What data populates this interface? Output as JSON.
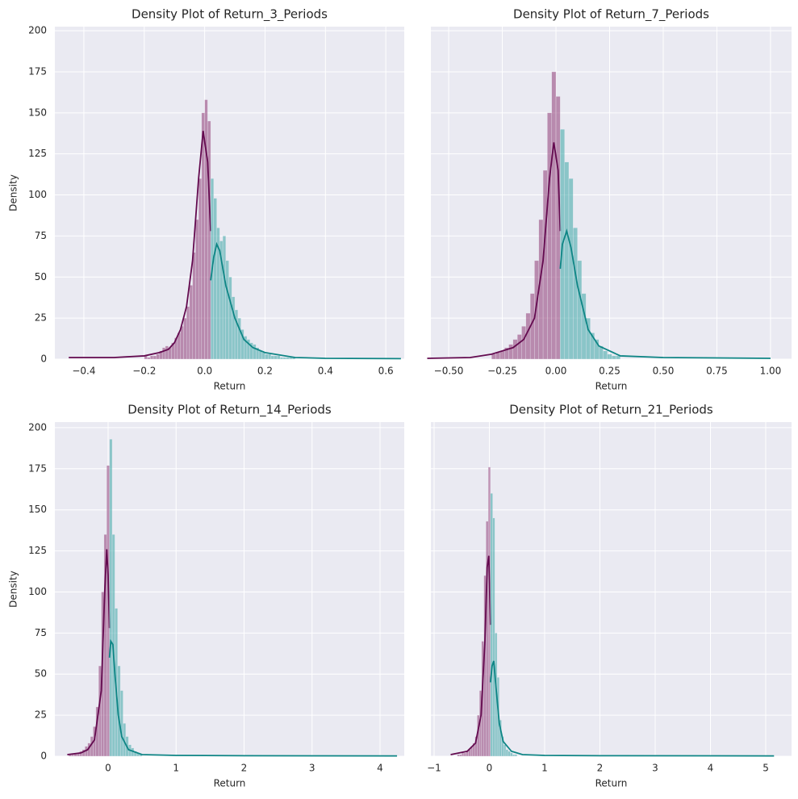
{
  "chart_data": [
    {
      "type": "histogram",
      "title": "Density Plot of Return_3_Periods",
      "x_label": "Return",
      "y_label": "Density",
      "xlim": [
        -0.496,
        0.661
      ],
      "ylim": [
        0,
        202.5
      ],
      "xticks": [
        {
          "value": -0.4,
          "label": "−0.4"
        },
        {
          "value": -0.2,
          "label": "−0.2"
        },
        {
          "value": 0,
          "label": "0.0"
        },
        0.2,
        0.4,
        0.6
      ],
      "yticks": [
        0,
        25,
        50,
        75,
        100,
        125,
        150,
        175,
        200
      ],
      "show_ytick_labels": true,
      "grid": true,
      "series": [
        {
          "color": "#8e3a76",
          "line_color": "#630a4f",
          "bins": [
            -0.2,
            -0.19,
            -0.18,
            -0.17,
            -0.16,
            -0.15,
            -0.14,
            -0.13,
            -0.12,
            -0.11,
            -0.1,
            -0.09,
            -0.08,
            -0.07,
            -0.06,
            -0.05,
            -0.04,
            -0.03,
            -0.02,
            -0.01,
            0.0,
            0.01,
            0.02
          ],
          "values": [
            2,
            1,
            2,
            2,
            3,
            5,
            7,
            8,
            7,
            10,
            13,
            16,
            20,
            25,
            32,
            45,
            65,
            85,
            110,
            150,
            158,
            145
          ],
          "kde_x": [
            -0.45,
            -0.3,
            -0.2,
            -0.15,
            -0.12,
            -0.1,
            -0.08,
            -0.06,
            -0.04,
            -0.02,
            -0.005,
            0.01,
            0.02
          ],
          "kde_y": [
            1,
            1,
            2,
            4,
            6,
            10,
            18,
            32,
            60,
            110,
            139,
            120,
            78
          ]
        },
        {
          "color": "#3aa6a6",
          "line_color": "#0e8585",
          "bins": [
            0.02,
            0.03,
            0.04,
            0.05,
            0.06,
            0.07,
            0.08,
            0.09,
            0.1,
            0.11,
            0.12,
            0.13,
            0.14,
            0.15,
            0.16,
            0.17,
            0.18,
            0.19,
            0.2,
            0.21,
            0.22,
            0.23,
            0.24,
            0.25,
            0.26,
            0.27,
            0.28,
            0.29,
            0.3
          ],
          "values": [
            110,
            98,
            80,
            72,
            75,
            60,
            50,
            38,
            30,
            25,
            18,
            14,
            12,
            10,
            9,
            7,
            5,
            4,
            3,
            3,
            2,
            2,
            2,
            1,
            1,
            1,
            1,
            1
          ],
          "kde_x": [
            0.02,
            0.03,
            0.04,
            0.05,
            0.07,
            0.1,
            0.13,
            0.16,
            0.2,
            0.3,
            0.4,
            0.65
          ],
          "kde_y": [
            48,
            62,
            70,
            66,
            45,
            25,
            12,
            7,
            4,
            1,
            0.5,
            0.3
          ]
        }
      ]
    },
    {
      "type": "histogram",
      "title": "Density Plot of Return_7_Periods",
      "x_label": "Return",
      "xlim": [
        -0.583,
        1.098
      ],
      "ylim": [
        0,
        202.5
      ],
      "xticks": [
        {
          "value": -0.5,
          "label": "−0.50"
        },
        {
          "value": -0.25,
          "label": "−0.25"
        },
        {
          "value": 0,
          "label": "0.00"
        },
        {
          "value": 0.25,
          "label": "0.25"
        },
        {
          "value": 0.5,
          "label": "0.50"
        },
        {
          "value": 0.75,
          "label": "0.75"
        },
        {
          "value": 1,
          "label": "1.00"
        }
      ],
      "yticks": [
        0,
        25,
        50,
        75,
        100,
        125,
        150,
        175,
        200
      ],
      "show_ytick_labels": false,
      "grid": true,
      "series": [
        {
          "color": "#8e3a76",
          "line_color": "#630a4f",
          "bins": [
            -0.3,
            -0.28,
            -0.26,
            -0.24,
            -0.22,
            -0.2,
            -0.18,
            -0.16,
            -0.14,
            -0.12,
            -0.1,
            -0.08,
            -0.06,
            -0.04,
            -0.02,
            0.0,
            0.02
          ],
          "values": [
            3,
            4,
            5,
            7,
            9,
            12,
            15,
            20,
            28,
            40,
            60,
            85,
            115,
            150,
            175,
            160
          ],
          "kde_x": [
            -0.6,
            -0.4,
            -0.3,
            -0.2,
            -0.15,
            -0.1,
            -0.06,
            -0.03,
            -0.01,
            0.01,
            0.02
          ],
          "kde_y": [
            0.5,
            1,
            3,
            7,
            12,
            25,
            60,
            110,
            132,
            115,
            78
          ]
        },
        {
          "color": "#3aa6a6",
          "line_color": "#0e8585",
          "bins": [
            0.02,
            0.04,
            0.06,
            0.08,
            0.1,
            0.12,
            0.14,
            0.16,
            0.18,
            0.2,
            0.22,
            0.24,
            0.26,
            0.28,
            0.3
          ],
          "values": [
            140,
            120,
            110,
            80,
            60,
            40,
            25,
            16,
            12,
            8,
            5,
            3,
            2,
            2
          ],
          "kde_x": [
            0.02,
            0.03,
            0.05,
            0.07,
            0.1,
            0.15,
            0.2,
            0.3,
            0.5,
            1.0
          ],
          "kde_y": [
            55,
            70,
            78,
            68,
            45,
            18,
            8,
            2,
            1,
            0.5
          ]
        }
      ]
    },
    {
      "type": "histogram",
      "title": "Density Plot of Return_14_Periods",
      "x_label": "Return",
      "y_label": "Density",
      "xlim": [
        -0.783,
        4.356
      ],
      "ylim": [
        0,
        203.4
      ],
      "xticks": [
        0,
        1,
        2,
        3,
        4
      ],
      "yticks": [
        0,
        25,
        50,
        75,
        100,
        125,
        150,
        175,
        200
      ],
      "show_ytick_labels": true,
      "grid": true,
      "series": [
        {
          "color": "#8e3a76",
          "line_color": "#630a4f",
          "bins": [
            -0.58,
            -0.54,
            -0.5,
            -0.46,
            -0.42,
            -0.38,
            -0.34,
            -0.3,
            -0.26,
            -0.22,
            -0.18,
            -0.14,
            -0.1,
            -0.06,
            -0.02,
            0.02
          ],
          "values": [
            1,
            1,
            2,
            2,
            3,
            4,
            6,
            8,
            12,
            18,
            30,
            55,
            100,
            135,
            177
          ],
          "kde_x": [
            -0.6,
            -0.4,
            -0.3,
            -0.2,
            -0.1,
            -0.05,
            -0.02,
            0.0,
            0.02
          ],
          "kde_y": [
            1,
            2,
            4,
            10,
            40,
            100,
            126,
            110,
            78
          ]
        },
        {
          "color": "#3aa6a6",
          "line_color": "#0e8585",
          "bins": [
            0.02,
            0.06,
            0.1,
            0.14,
            0.18,
            0.22,
            0.26,
            0.3,
            0.34,
            0.38,
            0.42,
            0.46,
            0.5
          ],
          "values": [
            193,
            135,
            90,
            55,
            40,
            20,
            12,
            7,
            5,
            3,
            2,
            1
          ],
          "kde_x": [
            0.02,
            0.04,
            0.07,
            0.1,
            0.15,
            0.2,
            0.3,
            0.5,
            1,
            2,
            4.25
          ],
          "kde_y": [
            60,
            70,
            68,
            50,
            25,
            12,
            4,
            1,
            0.5,
            0.3,
            0.2
          ]
        }
      ]
    },
    {
      "type": "histogram",
      "title": "Density Plot of Return_21_Periods",
      "x_label": "Return",
      "xlim": [
        -1.058,
        5.467
      ],
      "ylim": [
        0,
        203.4
      ],
      "xticks": [
        {
          "value": -1,
          "label": "−1"
        },
        0,
        1,
        2,
        3,
        4,
        5
      ],
      "yticks": [
        0,
        25,
        50,
        75,
        100,
        125,
        150,
        175,
        200
      ],
      "show_ytick_labels": false,
      "grid": true,
      "series": [
        {
          "color": "#8e3a76",
          "line_color": "#630a4f",
          "bins": [
            -0.58,
            -0.54,
            -0.5,
            -0.46,
            -0.42,
            -0.38,
            -0.34,
            -0.3,
            -0.26,
            -0.22,
            -0.18,
            -0.14,
            -0.1,
            -0.06,
            -0.02,
            0.02
          ],
          "values": [
            1,
            1,
            2,
            2,
            3,
            4,
            6,
            8,
            12,
            25,
            40,
            70,
            110,
            143,
            176
          ],
          "kde_x": [
            -0.7,
            -0.4,
            -0.25,
            -0.15,
            -0.08,
            -0.04,
            -0.01,
            0.02
          ],
          "kde_y": [
            1,
            3,
            8,
            25,
            70,
            115,
            122,
            80
          ]
        },
        {
          "color": "#3aa6a6",
          "line_color": "#0e8585",
          "bins": [
            0.02,
            0.06,
            0.1,
            0.14,
            0.18,
            0.22,
            0.26,
            0.3,
            0.34,
            0.38,
            0.42,
            0.46,
            0.5
          ],
          "values": [
            160,
            145,
            75,
            48,
            22,
            12,
            7,
            4,
            3,
            2,
            1,
            1
          ],
          "kde_x": [
            0.02,
            0.05,
            0.08,
            0.12,
            0.18,
            0.25,
            0.4,
            0.6,
            1,
            2,
            5.15
          ],
          "kde_y": [
            45,
            55,
            58,
            42,
            20,
            9,
            3,
            1,
            0.5,
            0.3,
            0.2
          ]
        }
      ]
    }
  ]
}
